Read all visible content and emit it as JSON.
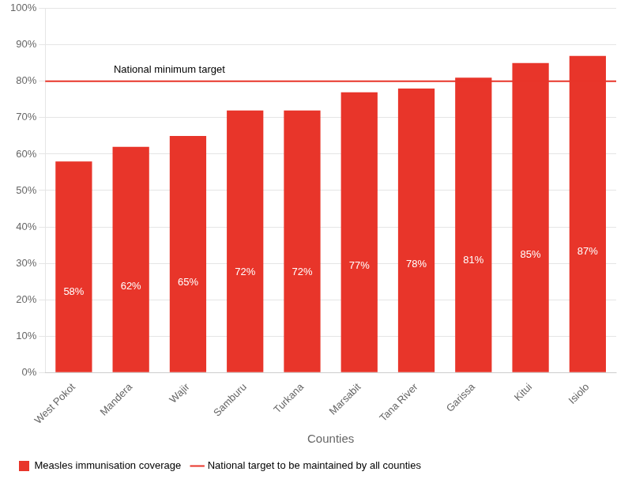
{
  "chart_data": {
    "type": "bar",
    "xlabel": "Counties",
    "categories": [
      "West Pokot",
      "Mandera",
      "Wajir",
      "Samburu",
      "Turkana",
      "Marsabit",
      "Tana River",
      "Garissa",
      "Kitui",
      "Isiolo"
    ],
    "series": [
      {
        "name": "Measles immunisation coverage",
        "color": "#E8352A",
        "values": [
          58,
          62,
          65,
          72,
          72,
          77,
          78,
          81,
          85,
          87
        ],
        "value_labels": [
          "58%",
          "62%",
          "65%",
          "72%",
          "72%",
          "77%",
          "78%",
          "81%",
          "85%",
          "87%"
        ]
      }
    ],
    "target": {
      "value": 80,
      "name": "National target to be maintained by all counties",
      "color": "#E8352A",
      "annotation": "National minimum target"
    },
    "ylim": [
      0,
      100
    ],
    "yticks": [
      {
        "value": 0,
        "label": "0%"
      },
      {
        "value": 10,
        "label": "10%"
      },
      {
        "value": 20,
        "label": "20%"
      },
      {
        "value": 30,
        "label": "30%"
      },
      {
        "value": 40,
        "label": "40%"
      },
      {
        "value": 50,
        "label": "50%"
      },
      {
        "value": 60,
        "label": "60%"
      },
      {
        "value": 70,
        "label": "70%"
      },
      {
        "value": 80,
        "label": "80%"
      },
      {
        "value": 90,
        "label": "90%"
      },
      {
        "value": 100,
        "label": "100%"
      }
    ],
    "grid": true,
    "data_labels": true,
    "legend": "bottom"
  }
}
